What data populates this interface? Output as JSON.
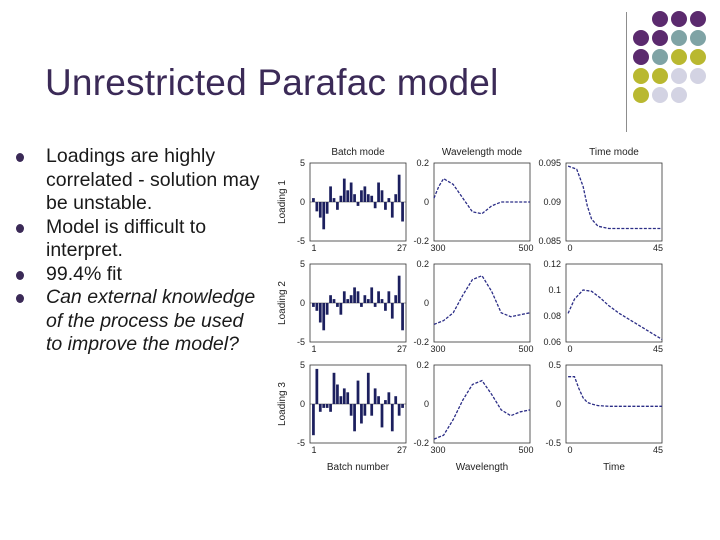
{
  "slide": {
    "title": "Unrestricted Parafac model",
    "bullets": [
      {
        "text": "Loadings are highly correlated - solution may be unstable.",
        "italic": false
      },
      {
        "text": "Model is difficult to interpret.",
        "italic": false
      },
      {
        "text": "99.4% fit",
        "italic": false
      },
      {
        "text": "Can external knowledge of the process be used to improve the model?",
        "italic": true
      }
    ],
    "colors": {
      "title": "#3b2a57",
      "bullet": "#3b2a57",
      "plot_line": "#2b2d86",
      "bar_fill": "#1c1f5e"
    },
    "decoration": {
      "dot_colors": {
        "purple": "#5b2a6e",
        "teal": "#7fa3a5",
        "olive": "#b9b830",
        "lavender": "#d3d3e3"
      }
    }
  },
  "chart_data": {
    "type": "panel-grid",
    "column_titles": [
      "Batch mode",
      "Wavelength mode",
      "Time mode"
    ],
    "row_labels": [
      "Loading 1",
      "Loading 2",
      "Loading 3"
    ],
    "column_xlabels": [
      "Batch number",
      "Wavelength",
      "Time"
    ],
    "x_ticks": {
      "batch": [
        "1",
        "27"
      ],
      "wavelength": [
        "300",
        "500"
      ],
      "time": [
        "0",
        "45"
      ]
    },
    "y_ticks": {
      "batch": [
        [
          "5",
          "0",
          "-5"
        ],
        [
          "5",
          "0",
          "-5"
        ],
        [
          "5",
          "0",
          "-5"
        ]
      ],
      "wavelength": [
        [
          "0.2",
          "0",
          "-0.2"
        ],
        [
          "0.2",
          "0",
          "-0.2"
        ],
        [
          "0.2",
          "0",
          "-0.2"
        ]
      ],
      "time": [
        [
          "0.095",
          "0.09",
          "0.085"
        ],
        [
          "0.12",
          "0.1",
          "0.08",
          "0.06"
        ],
        [
          "0.5",
          "0",
          "-0.5"
        ]
      ]
    },
    "batch_mode": {
      "ylim": [
        -5,
        5
      ],
      "x": [
        1,
        2,
        3,
        4,
        5,
        6,
        7,
        8,
        9,
        10,
        11,
        12,
        13,
        14,
        15,
        16,
        17,
        18,
        19,
        20,
        21,
        22,
        23,
        24,
        25,
        26,
        27
      ],
      "loading1": [
        0.5,
        -1.2,
        -2.0,
        -3.5,
        -1.5,
        2.0,
        0.5,
        -1.0,
        0.8,
        3.0,
        1.5,
        2.5,
        1.0,
        -0.5,
        1.5,
        2.0,
        1.0,
        0.8,
        -0.8,
        2.5,
        1.5,
        -1.0,
        0.5,
        -2.0,
        1.0,
        3.5,
        -2.5
      ],
      "loading2": [
        -0.5,
        -1.0,
        -2.5,
        -3.5,
        -1.5,
        1.0,
        0.5,
        -0.5,
        -1.5,
        1.5,
        0.5,
        1.0,
        2.0,
        1.5,
        -0.5,
        1.0,
        0.5,
        2.0,
        -0.5,
        1.5,
        0.5,
        -1.0,
        1.5,
        -2.0,
        1.0,
        3.5,
        -3.5
      ],
      "loading3": [
        -4.0,
        4.5,
        -1.0,
        -0.5,
        -0.5,
        -1.0,
        4.0,
        2.5,
        1.0,
        2.0,
        1.5,
        -1.5,
        -3.5,
        3.0,
        -2.5,
        -1.5,
        4.0,
        -1.5,
        2.0,
        1.0,
        -3.0,
        0.5,
        1.5,
        -3.5,
        1.0,
        -1.5,
        -0.5
      ]
    },
    "wavelength_mode": {
      "ylim": [
        -0.2,
        0.2
      ],
      "xlim": [
        300,
        500
      ],
      "loading1": {
        "x": [
          300,
          310,
          320,
          340,
          360,
          380,
          400,
          420,
          440,
          460,
          480,
          500
        ],
        "y": [
          0.02,
          0.08,
          0.12,
          0.09,
          0.02,
          -0.05,
          -0.06,
          -0.02,
          0.0,
          0.0,
          0.0,
          0.0
        ]
      },
      "loading2": {
        "x": [
          300,
          320,
          340,
          360,
          380,
          400,
          420,
          440,
          460,
          480,
          500
        ],
        "y": [
          -0.11,
          -0.09,
          -0.05,
          0.04,
          0.12,
          0.14,
          0.06,
          -0.05,
          -0.07,
          -0.06,
          -0.05
        ]
      },
      "loading3": {
        "x": [
          300,
          320,
          340,
          360,
          380,
          400,
          420,
          440,
          460,
          480,
          500
        ],
        "y": [
          -0.18,
          -0.16,
          -0.08,
          0.02,
          0.1,
          0.12,
          0.05,
          -0.03,
          -0.06,
          -0.04,
          -0.03
        ]
      }
    },
    "time_mode": {
      "xlim": [
        0,
        45
      ],
      "loading1": {
        "ylim": [
          0.085,
          0.095
        ],
        "x": [
          1,
          5,
          8,
          10,
          12,
          15,
          20,
          25,
          30,
          35,
          40,
          45
        ],
        "y": [
          0.0946,
          0.0942,
          0.092,
          0.0895,
          0.0878,
          0.0869,
          0.0866,
          0.0866,
          0.0866,
          0.0866,
          0.0866,
          0.0866
        ]
      },
      "loading2": {
        "ylim": [
          0.06,
          0.12
        ],
        "x": [
          1,
          4,
          8,
          12,
          16,
          20,
          25,
          30,
          35,
          40,
          45
        ],
        "y": [
          0.082,
          0.093,
          0.1,
          0.099,
          0.094,
          0.088,
          0.082,
          0.077,
          0.072,
          0.067,
          0.062
        ]
      },
      "loading3": {
        "ylim": [
          -0.5,
          0.5
        ],
        "x": [
          1,
          4,
          6,
          8,
          10,
          12,
          15,
          20,
          30,
          45
        ],
        "y": [
          0.35,
          0.35,
          0.2,
          0.08,
          0.02,
          0.0,
          -0.02,
          -0.03,
          -0.03,
          -0.03
        ]
      }
    }
  }
}
